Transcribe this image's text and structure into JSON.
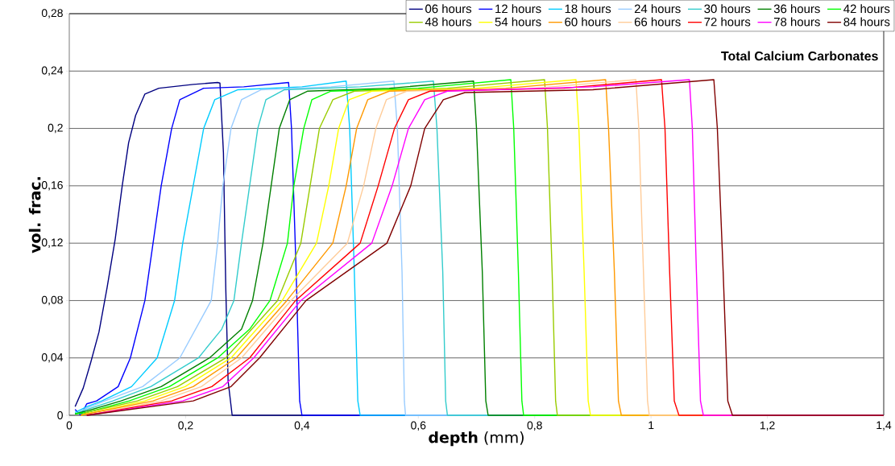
{
  "chart_data": {
    "type": "line",
    "xlabel": "**depth** (mm)",
    "ylabel": "vol. frac.",
    "annotations": [
      "Total Calcium Carbonates"
    ],
    "xlim": [
      0,
      1.4
    ],
    "ylim": [
      0,
      0.28
    ],
    "xticks": [
      0,
      {
        "value": 0.2,
        "label": "0,2"
      },
      {
        "value": 0.4,
        "label": "0,4"
      },
      {
        "value": 0.6,
        "label": "0,6"
      },
      {
        "value": 0.8,
        "label": "0,8"
      },
      1,
      {
        "value": 1.2,
        "label": "1,2"
      },
      {
        "value": 1.4,
        "label": "1,4"
      }
    ],
    "yticks": [
      0,
      {
        "value": 0.04,
        "label": "0,04"
      },
      {
        "value": 0.08,
        "label": "0,08"
      },
      {
        "value": 0.12,
        "label": "0,12"
      },
      {
        "value": 0.16,
        "label": "0,16"
      },
      {
        "value": 0.2,
        "label": "0,2"
      },
      {
        "value": 0.24,
        "label": "0,24"
      },
      {
        "value": 0.28,
        "label": "0,28"
      }
    ],
    "grid": "y",
    "legend": "top",
    "series": [
      {
        "name": "06 hours",
        "color": "#000080",
        "x": [
          0.01,
          0.024,
          0.037,
          0.051,
          0.065,
          0.079,
          0.091,
          0.102,
          0.114,
          0.13,
          0.154,
          0.213,
          0.255,
          0.259,
          0.265,
          0.269,
          0.273,
          0.28,
          1.4
        ],
        "values": [
          0.006,
          0.019,
          0.037,
          0.058,
          0.089,
          0.123,
          0.16,
          0.19,
          0.209,
          0.224,
          0.228,
          0.2307,
          0.232,
          0.2316,
          0.183,
          0.089,
          0.024,
          0,
          0
        ]
      },
      {
        "name": "12 hours",
        "color": "#0000ff",
        "x": [
          0.01,
          0.02,
          0.03,
          0.047,
          0.084,
          0.105,
          0.13,
          0.144,
          0.158,
          0.176,
          0.19,
          0.231,
          0.3,
          0.377,
          0.382,
          0.39,
          0.396,
          0.4,
          1.4
        ],
        "values": [
          0.004,
          0,
          0.008,
          0.01,
          0.02,
          0.04,
          0.08,
          0.12,
          0.16,
          0.2,
          0.22,
          0.228,
          0.229,
          0.232,
          0.2,
          0.1,
          0.01,
          0,
          0
        ]
      },
      {
        "name": "18 hours",
        "color": "#00ccff",
        "x": [
          0.01,
          0.03,
          0.056,
          0.107,
          0.151,
          0.181,
          0.195,
          0.213,
          0.231,
          0.25,
          0.29,
          0.4,
          0.476,
          0.482,
          0.49,
          0.496,
          0.5,
          1.4
        ],
        "values": [
          0.002,
          0.006,
          0.01,
          0.02,
          0.04,
          0.08,
          0.12,
          0.16,
          0.2,
          0.22,
          0.227,
          0.229,
          0.233,
          0.2,
          0.1,
          0.01,
          0,
          0
        ]
      },
      {
        "name": "24 hours",
        "color": "#99ccff",
        "x": [
          0.01,
          0.03,
          0.061,
          0.126,
          0.19,
          0.244,
          0.255,
          0.264,
          0.278,
          0.296,
          0.33,
          0.45,
          0.558,
          0.564,
          0.572,
          0.576,
          0.578,
          1.4
        ],
        "values": [
          0.001,
          0.005,
          0.01,
          0.02,
          0.04,
          0.08,
          0.12,
          0.16,
          0.2,
          0.22,
          0.227,
          0.229,
          0.233,
          0.2,
          0.1,
          0.01,
          0,
          0
        ]
      },
      {
        "name": "30 hours",
        "color": "#33cccc",
        "x": [
          0.01,
          0.03,
          0.075,
          0.14,
          0.222,
          0.262,
          0.283,
          0.296,
          0.31,
          0.324,
          0.338,
          0.37,
          0.5,
          0.626,
          0.632,
          0.642,
          0.647,
          0.65,
          1.4
        ],
        "values": [
          0.001,
          0.004,
          0.01,
          0.02,
          0.04,
          0.06,
          0.08,
          0.12,
          0.16,
          0.2,
          0.22,
          0.227,
          0.229,
          0.233,
          0.2,
          0.1,
          0.01,
          0,
          0
        ]
      },
      {
        "name": "36 hours",
        "color": "#008000",
        "x": [
          0.01,
          0.03,
          0.089,
          0.158,
          0.241,
          0.296,
          0.315,
          0.333,
          0.347,
          0.361,
          0.379,
          0.41,
          0.55,
          0.695,
          0.7,
          0.71,
          0.716,
          0.72,
          1.4
        ],
        "values": [
          0.001,
          0.003,
          0.01,
          0.02,
          0.04,
          0.06,
          0.08,
          0.12,
          0.16,
          0.2,
          0.22,
          0.226,
          0.228,
          0.233,
          0.2,
          0.1,
          0.01,
          0,
          0
        ]
      },
      {
        "name": "42 hours",
        "color": "#00ff00",
        "x": [
          0.01,
          0.03,
          0.103,
          0.172,
          0.255,
          0.31,
          0.345,
          0.375,
          0.386,
          0.403,
          0.417,
          0.45,
          0.6,
          0.759,
          0.764,
          0.772,
          0.778,
          0.781,
          1.4
        ],
        "values": [
          0.001,
          0.002,
          0.01,
          0.02,
          0.04,
          0.06,
          0.08,
          0.12,
          0.16,
          0.2,
          0.22,
          0.226,
          0.228,
          0.234,
          0.2,
          0.1,
          0.01,
          0,
          0
        ]
      },
      {
        "name": "48 hours",
        "color": "#99cc00",
        "x": [
          0.02,
          0.03,
          0.117,
          0.186,
          0.269,
          0.358,
          0.398,
          0.414,
          0.43,
          0.453,
          0.49,
          0.65,
          0.817,
          0.822,
          0.83,
          0.836,
          0.839,
          1.4
        ],
        "values": [
          0,
          0.002,
          0.01,
          0.02,
          0.04,
          0.08,
          0.12,
          0.16,
          0.2,
          0.22,
          0.226,
          0.228,
          0.234,
          0.2,
          0.1,
          0.01,
          0,
          0
        ]
      },
      {
        "name": "54 hours",
        "color": "#ffff00",
        "x": [
          0.02,
          0.03,
          0.13,
          0.199,
          0.278,
          0.366,
          0.425,
          0.446,
          0.463,
          0.481,
          0.52,
          0.7,
          0.871,
          0.876,
          0.885,
          0.892,
          0.896,
          1.4
        ],
        "values": [
          0,
          0.001,
          0.01,
          0.02,
          0.04,
          0.08,
          0.12,
          0.16,
          0.2,
          0.22,
          0.226,
          0.228,
          0.234,
          0.2,
          0.1,
          0.01,
          0,
          0
        ]
      },
      {
        "name": "60 hours",
        "color": "#ff9900",
        "x": [
          0.02,
          0.03,
          0.144,
          0.213,
          0.287,
          0.374,
          0.453,
          0.476,
          0.494,
          0.513,
          0.55,
          0.75,
          0.922,
          0.927,
          0.937,
          0.944,
          0.949,
          1.4
        ],
        "values": [
          0,
          0.001,
          0.01,
          0.02,
          0.04,
          0.08,
          0.12,
          0.16,
          0.2,
          0.22,
          0.226,
          0.228,
          0.234,
          0.2,
          0.1,
          0.01,
          0,
          0
        ]
      },
      {
        "name": "66 hours",
        "color": "#ffcc99",
        "x": [
          0.03,
          0.158,
          0.227,
          0.296,
          0.381,
          0.478,
          0.506,
          0.527,
          0.545,
          0.58,
          0.8,
          0.974,
          0.979,
          0.987,
          0.994,
          0.997,
          1.4
        ],
        "values": [
          0,
          0.01,
          0.02,
          0.04,
          0.08,
          0.12,
          0.16,
          0.2,
          0.22,
          0.226,
          0.228,
          0.234,
          0.2,
          0.1,
          0.01,
          0,
          0
        ]
      },
      {
        "name": "72 hours",
        "color": "#ff0000",
        "x": [
          0.03,
          0.176,
          0.245,
          0.31,
          0.389,
          0.5,
          0.531,
          0.559,
          0.583,
          0.62,
          0.85,
          1.018,
          1.024,
          1.032,
          1.04,
          1.048,
          1.4
        ],
        "values": [
          0,
          0.01,
          0.02,
          0.04,
          0.08,
          0.12,
          0.16,
          0.2,
          0.22,
          0.226,
          0.228,
          0.234,
          0.2,
          0.1,
          0.01,
          0,
          0
        ]
      },
      {
        "name": "78 hours",
        "color": "#ff00ff",
        "x": [
          0.03,
          0.195,
          0.264,
          0.317,
          0.398,
          0.52,
          0.555,
          0.583,
          0.611,
          0.65,
          0.9,
          1.066,
          1.071,
          1.078,
          1.085,
          1.09,
          1.4
        ],
        "values": [
          0,
          0.01,
          0.02,
          0.04,
          0.08,
          0.12,
          0.16,
          0.2,
          0.22,
          0.226,
          0.229,
          0.234,
          0.2,
          0.1,
          0.01,
          0,
          0
        ]
      },
      {
        "name": "84 hours",
        "color": "#800000",
        "x": [
          0.03,
          0.213,
          0.278,
          0.327,
          0.407,
          0.546,
          0.587,
          0.611,
          0.643,
          0.68,
          0.9,
          1.108,
          1.114,
          1.124,
          1.132,
          1.14,
          1.4
        ],
        "values": [
          0,
          0.01,
          0.02,
          0.04,
          0.08,
          0.12,
          0.16,
          0.2,
          0.22,
          0.225,
          0.227,
          0.234,
          0.2,
          0.1,
          0.01,
          0,
          0
        ]
      }
    ]
  }
}
